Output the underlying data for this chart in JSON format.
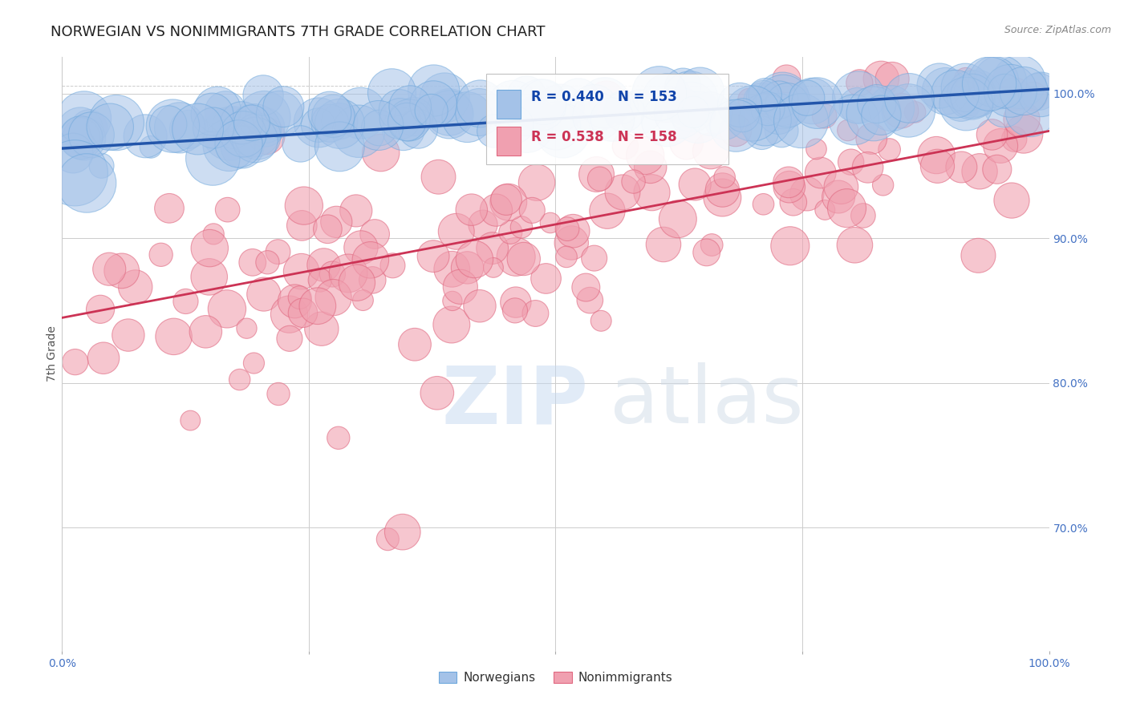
{
  "title": "NORWEGIAN VS NONIMMIGRANTS 7TH GRADE CORRELATION CHART",
  "source": "Source: ZipAtlas.com",
  "ylabel": "7th Grade",
  "ylabel_right_ticks": [
    "100.0%",
    "90.0%",
    "80.0%",
    "70.0%"
  ],
  "ylabel_right_positions": [
    1.0,
    0.9,
    0.8,
    0.7
  ],
  "legend_blue_r": "R = 0.440",
  "legend_blue_n": "N = 153",
  "legend_pink_r": "R = 0.538",
  "legend_pink_n": "N = 158",
  "legend_blue_label": "Norwegians",
  "legend_pink_label": "Nonimmigrants",
  "blue_color": "#a4c2e8",
  "pink_color": "#f0a0b0",
  "blue_edge_color": "#6fa8dc",
  "pink_edge_color": "#e06880",
  "blue_line_color": "#2255aa",
  "pink_line_color": "#cc3355",
  "background_color": "#ffffff",
  "xlim": [
    0.0,
    1.0
  ],
  "ylim": [
    0.615,
    1.025
  ],
  "blue_trend_x": [
    0.0,
    1.0
  ],
  "blue_trend_y": [
    0.962,
    1.003
  ],
  "pink_trend_x": [
    0.0,
    1.0
  ],
  "pink_trend_y": [
    0.845,
    0.974
  ],
  "dashed_line_y": 1.005,
  "grid_color": "#cccccc",
  "title_fontsize": 13,
  "legend_text_color_blue": "#1144aa",
  "legend_text_color_pink": "#cc3355",
  "axis_label_color": "#4472c4",
  "right_tick_color": "#4472c4",
  "source_color": "#888888"
}
